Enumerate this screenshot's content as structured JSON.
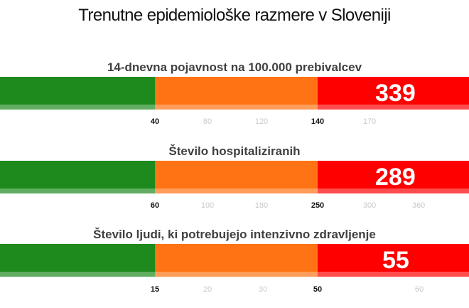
{
  "title": "Trenutne epidemiološke razmere v Sloveniji",
  "colors": {
    "green": "#1e8a1e",
    "orange": "#ff7314",
    "red": "#ff0000"
  },
  "indicators": [
    {
      "label": "14-dnevna pojavnost na 100.000 prebivalcev",
      "value": "339",
      "thresholds": [
        "40",
        "140"
      ],
      "minor_ticks": [
        "80",
        "120",
        "170"
      ]
    },
    {
      "label": "Število hospitaliziranih",
      "value": "289",
      "thresholds": [
        "60",
        "250"
      ],
      "minor_ticks": [
        "100",
        "180",
        "300",
        "360"
      ]
    },
    {
      "label": "Število ljudi, ki potrebujejo intenzivno zdravljenje",
      "value": "55",
      "thresholds": [
        "15",
        "50"
      ],
      "minor_ticks": [
        "20",
        "30",
        "60"
      ]
    }
  ]
}
